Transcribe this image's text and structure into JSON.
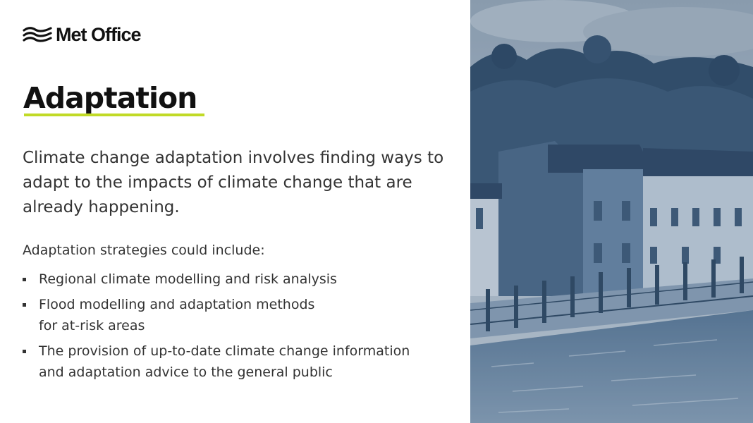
{
  "brand": {
    "name": "Met Office",
    "logo_icon": "met-office-wave-logo-icon"
  },
  "slide": {
    "title": "Adaptation",
    "intro": "Climate change adaptation involves finding ways to adapt to the impacts of climate change that are already happening.",
    "subheading": "Adaptation strategies could include:",
    "bullets": [
      {
        "line1": "Regional climate modelling and risk analysis",
        "line2": ""
      },
      {
        "line1": "Flood modelling and adaptation methods",
        "line2": "for at-risk areas"
      },
      {
        "line1": "The provision of up-to-date climate change information",
        "line2": "and adaptation advice to the general public"
      }
    ]
  },
  "image": {
    "subject": "riverside-town-flood-photo"
  },
  "colors": {
    "accent": "#c1da26",
    "photo_tint": "#3f5f80"
  }
}
